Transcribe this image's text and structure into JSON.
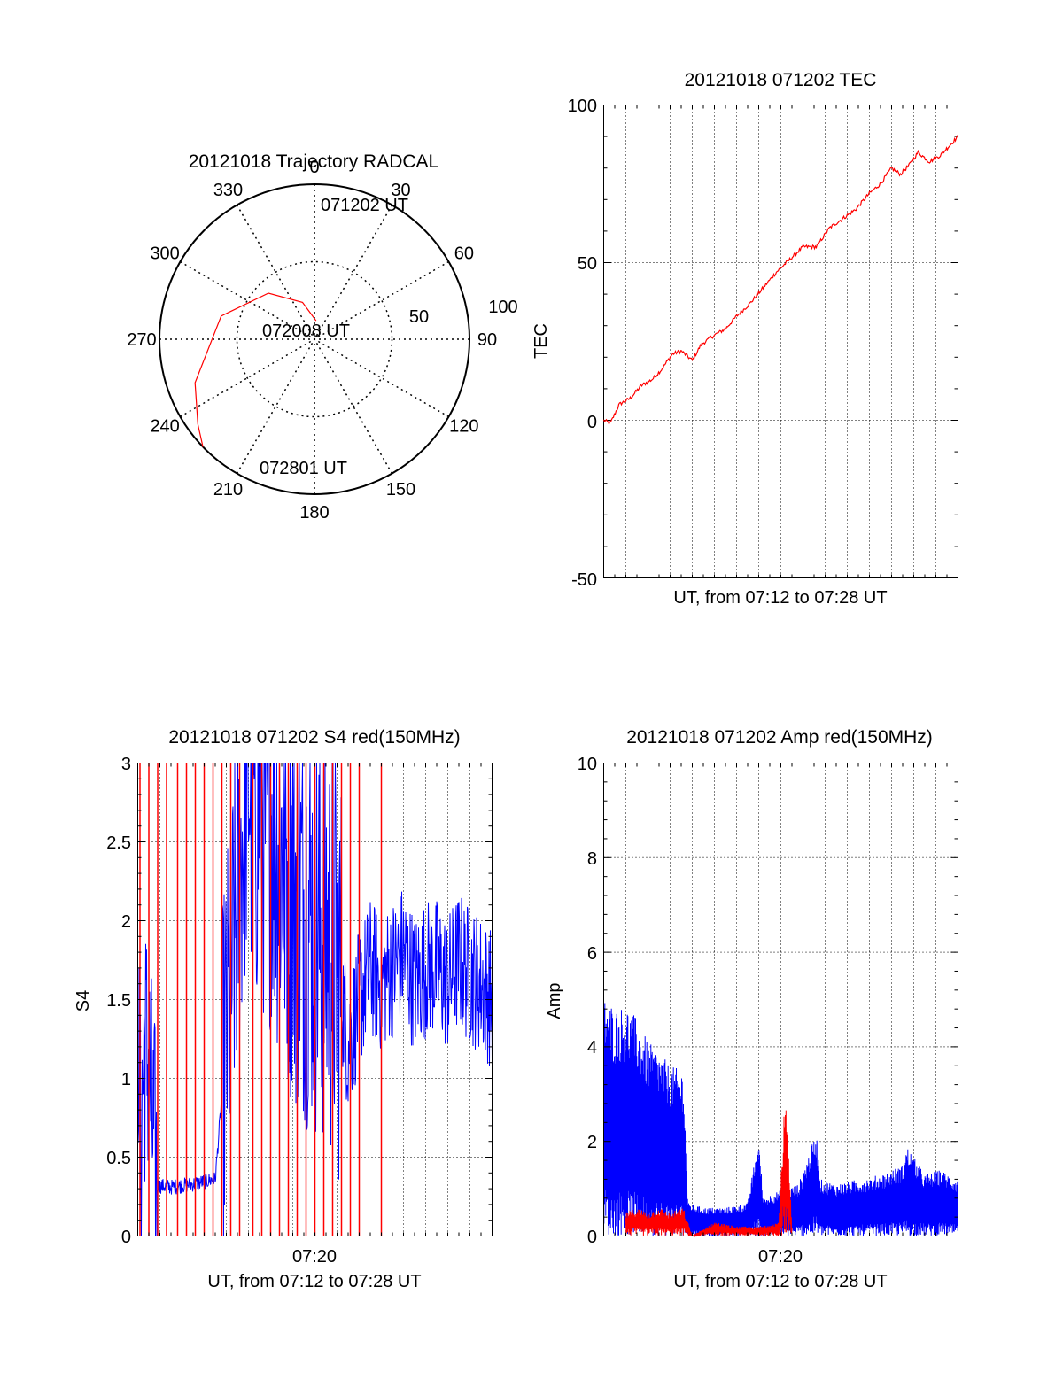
{
  "colors": {
    "red": "#ff0000",
    "blue": "#0000ff",
    "axis": "#000000",
    "background": "#ffffff"
  },
  "chart_data": [
    {
      "type": "polar",
      "title": "20121018 Trajectory RADCAL",
      "angle_labels": [
        "0",
        "30",
        "60",
        "90",
        "120",
        "150",
        "180",
        "210",
        "240",
        "270",
        "300",
        "330"
      ],
      "radius_labels": [
        "50",
        "100"
      ],
      "rlim": [
        0,
        100
      ],
      "grid": true,
      "trajectory": {
        "color": "#ff0000",
        "points": [
          {
            "azimuth": 5,
            "elevation": 12
          },
          {
            "azimuth": 342,
            "elevation": 25
          },
          {
            "azimuth": 315,
            "elevation": 42
          },
          {
            "azimuth": 284,
            "elevation": 62
          },
          {
            "azimuth": 250,
            "elevation": 82
          },
          {
            "azimuth": 234,
            "elevation": 93
          },
          {
            "azimuth": 226,
            "elevation": 100
          }
        ]
      },
      "annotations": [
        {
          "text": "071202 UT",
          "azimuth": 5,
          "elevation": 12
        },
        {
          "text": "072008 UT",
          "azimuth": 284,
          "elevation": 62
        },
        {
          "text": "072801 UT",
          "azimuth": 226,
          "elevation": 100
        }
      ]
    },
    {
      "type": "line",
      "title": "20121018 071202 TEC",
      "ylabel": "TEC",
      "xlabel": "UT, from 07:12 to 07:28 UT",
      "xlim_minutes": [
        0,
        16
      ],
      "ylim": [
        -50,
        100
      ],
      "yticks": [
        "100",
        "50",
        "0",
        "-50"
      ],
      "grid": "vertical dotted",
      "series": [
        {
          "color": "#ff0000",
          "x_minutes": [
            0,
            0.3,
            0.7,
            1.2,
            1.7,
            2.2,
            2.6,
            3.1,
            3.5,
            4.0,
            4.4,
            5.0,
            5.5,
            6.0,
            6.6,
            7.2,
            7.8,
            8.4,
            9.0,
            9.6,
            10.2,
            10.8,
            11.4,
            12.0,
            12.5,
            13.0,
            13.4,
            13.8,
            14.2,
            14.7,
            15.2,
            15.6,
            16.0
          ],
          "values": [
            0,
            -1,
            5,
            7,
            11,
            13,
            16,
            21,
            22,
            19,
            24,
            27,
            29,
            33,
            37,
            42,
            47,
            51,
            55,
            55,
            61,
            64,
            67,
            72,
            75,
            80,
            78,
            81,
            85,
            82,
            84,
            87,
            90
          ]
        }
      ]
    },
    {
      "type": "line",
      "title": "20121018 071202 S4 red(150MHz)",
      "ylabel": "S4",
      "xlabel": "UT, from 07:12 to 07:28 UT",
      "xtick_label": "07:20",
      "xlim_minutes": [
        0,
        16
      ],
      "ylim": [
        0,
        3
      ],
      "yticks": [
        "3",
        "2.5",
        "2",
        "1.5",
        "1",
        "0.5",
        "0"
      ],
      "grid": "vertical dotted",
      "series": [
        {
          "color": "#0000ff",
          "x_minutes": [
            0,
            0.1,
            0.3,
            0.5,
            0.7,
            0.9,
            1.5,
            2.5,
            3.5,
            5.0,
            5.2,
            6.0,
            7.0,
            8.0,
            8.5,
            9.0,
            9.5,
            10.0,
            10.5,
            11.0,
            11.5,
            12.0,
            12.5,
            13.0,
            13.5,
            14.0,
            14.5,
            15.0,
            15.5,
            16.0
          ],
          "values": [
            1.6,
            0.5,
            1.2,
            1.1,
            0.6,
            0.32,
            0.31,
            0.33,
            0.36,
            3.0,
            2.8,
            2.7,
            2.2,
            2.0,
            1.9,
            1.8,
            1.2,
            1.5,
            1.7,
            1.6,
            1.7,
            1.8,
            1.6,
            1.7,
            1.7,
            1.6,
            1.75,
            1.65,
            1.6,
            1.5
          ]
        },
        {
          "color": "#ff0000",
          "spike_x_minutes": [
            0.1,
            0.5,
            0.9,
            1.3,
            1.8,
            2.2,
            2.6,
            3.0,
            3.4,
            3.8,
            4.2,
            4.6,
            5.2,
            5.6,
            6.0,
            6.4,
            6.8,
            7.2,
            7.6,
            8.0,
            8.4,
            8.8,
            9.2,
            9.6,
            10.0,
            11.0
          ],
          "spike_values": [
            3,
            3,
            3,
            3,
            3,
            3,
            3,
            3,
            3,
            3,
            3,
            3,
            3,
            3,
            3,
            3,
            3,
            3,
            3,
            3,
            3,
            3,
            3,
            3,
            3,
            3
          ]
        }
      ]
    },
    {
      "type": "line",
      "title": "20121018 071202 Amp red(150MHz)",
      "ylabel": "Amp",
      "xlabel": "UT, from 07:12 to 07:28 UT",
      "xtick_label": "07:20",
      "xlim_minutes": [
        0,
        16
      ],
      "ylim": [
        0,
        10
      ],
      "yticks": [
        "10",
        "8",
        "6",
        "4",
        "2",
        "0"
      ],
      "grid": "vertical dotted",
      "series": [
        {
          "color": "#0000ff",
          "x_minutes": [
            0,
            0.5,
            1.0,
            1.5,
            2.0,
            2.5,
            3.0,
            3.6,
            3.8,
            4.5,
            5.5,
            6.5,
            7.0,
            7.2,
            7.6,
            8.2,
            8.8,
            9.6,
            9.8,
            10.5,
            11.5,
            12.5,
            13.5,
            13.7,
            14.5,
            15.2,
            16.0
          ],
          "values": [
            5.2,
            4.8,
            4.9,
            4.6,
            4.1,
            3.9,
            3.6,
            3.5,
            0.7,
            0.6,
            0.6,
            0.7,
            2.1,
            0.8,
            0.9,
            1.0,
            1.1,
            2.2,
            1.2,
            1.1,
            1.2,
            1.3,
            1.5,
            1.9,
            1.3,
            1.4,
            1.2
          ]
        },
        {
          "color": "#ff0000",
          "x_minutes": [
            1.0,
            1.5,
            2.0,
            2.5,
            3.0,
            3.6,
            4.0,
            5.0,
            6.0,
            7.0,
            7.9,
            8.2,
            8.5
          ],
          "values": [
            0.5,
            0.6,
            0.5,
            0.6,
            0.5,
            0.6,
            0.0,
            0.3,
            0.2,
            0.2,
            0.3,
            3.1,
            0.2
          ]
        }
      ]
    }
  ]
}
